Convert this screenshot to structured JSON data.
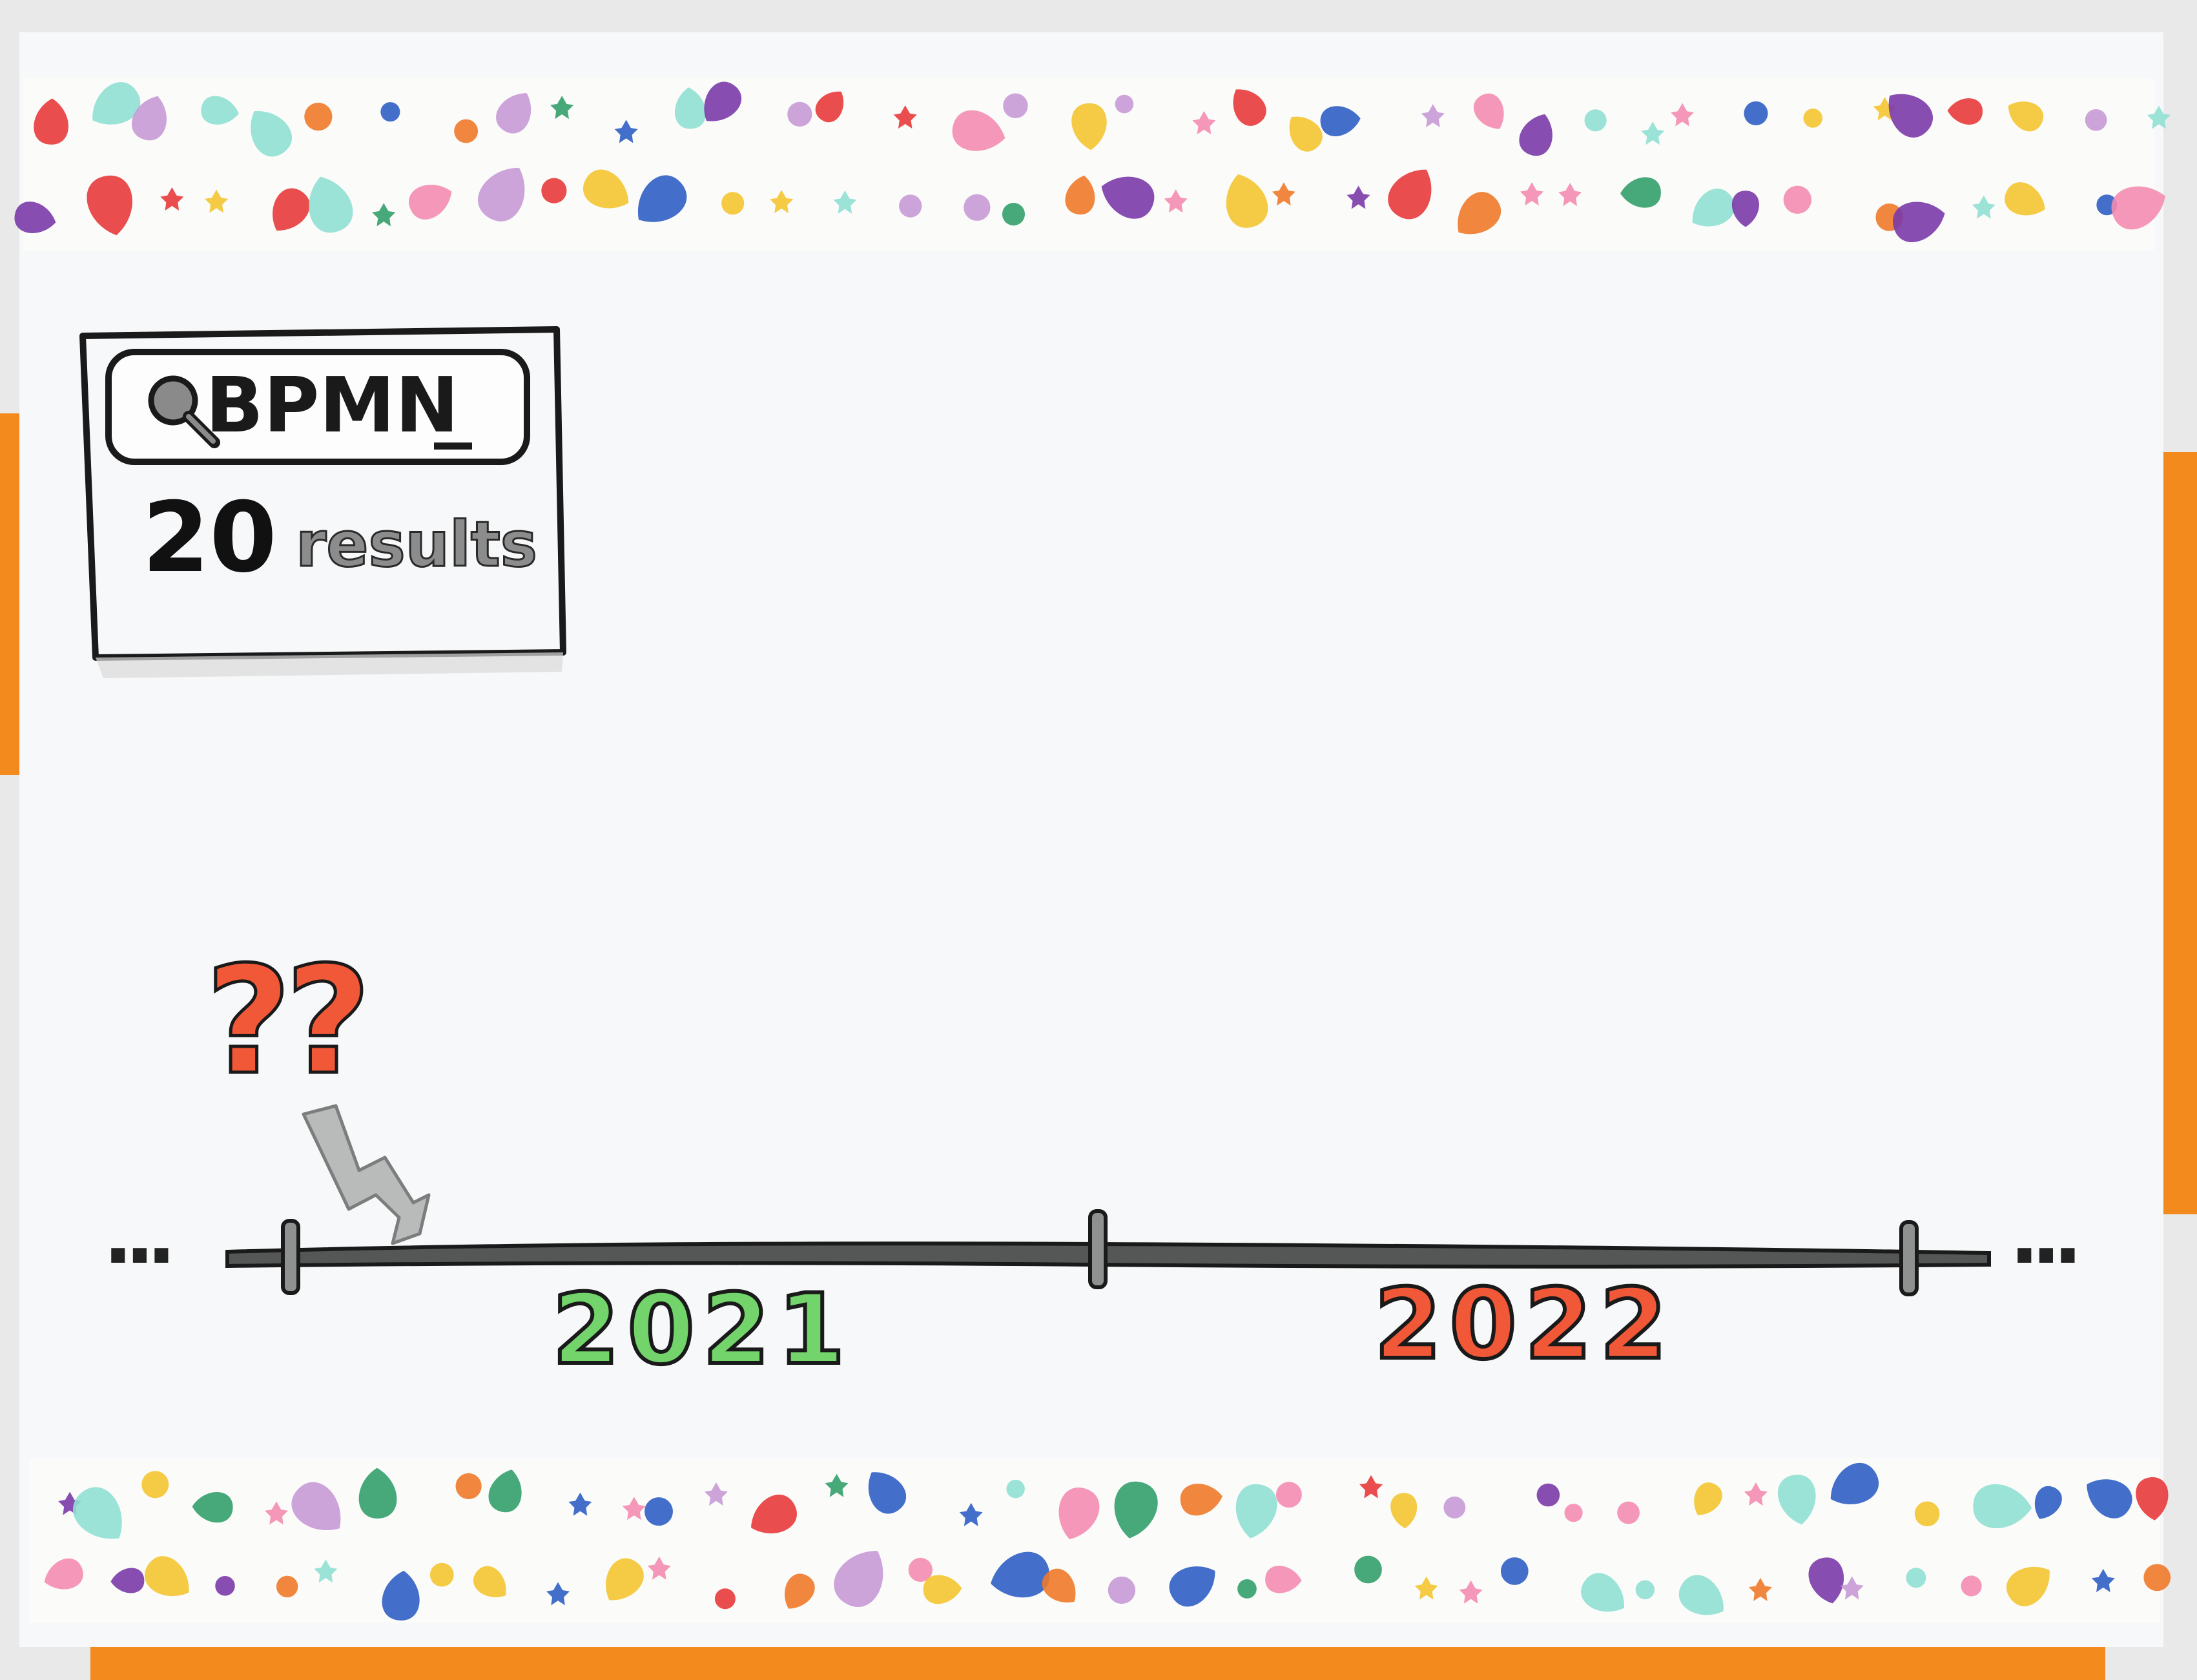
{
  "search": {
    "query": "BPMN",
    "cursor": "_",
    "results_count": "20",
    "results_label": "results"
  },
  "annotation": {
    "marks": "??"
  },
  "timeline": {
    "left_ellipsis": "...",
    "right_ellipsis": "...",
    "years": [
      "2021",
      "2022"
    ]
  },
  "colors": {
    "year_2021": "#72d46a",
    "year_2022": "#f05838",
    "question_marks": "#f05838",
    "tape_pattern": [
      "#f4c531",
      "#e83a3a",
      "#2f5fc4",
      "#f48cb0",
      "#8fe0d2",
      "#7a3aa8",
      "#f07a2a",
      "#33a06a",
      "#c79ad6"
    ],
    "backing": "#f28a1e"
  },
  "icons": [
    "search-icon",
    "arrow-icon"
  ]
}
